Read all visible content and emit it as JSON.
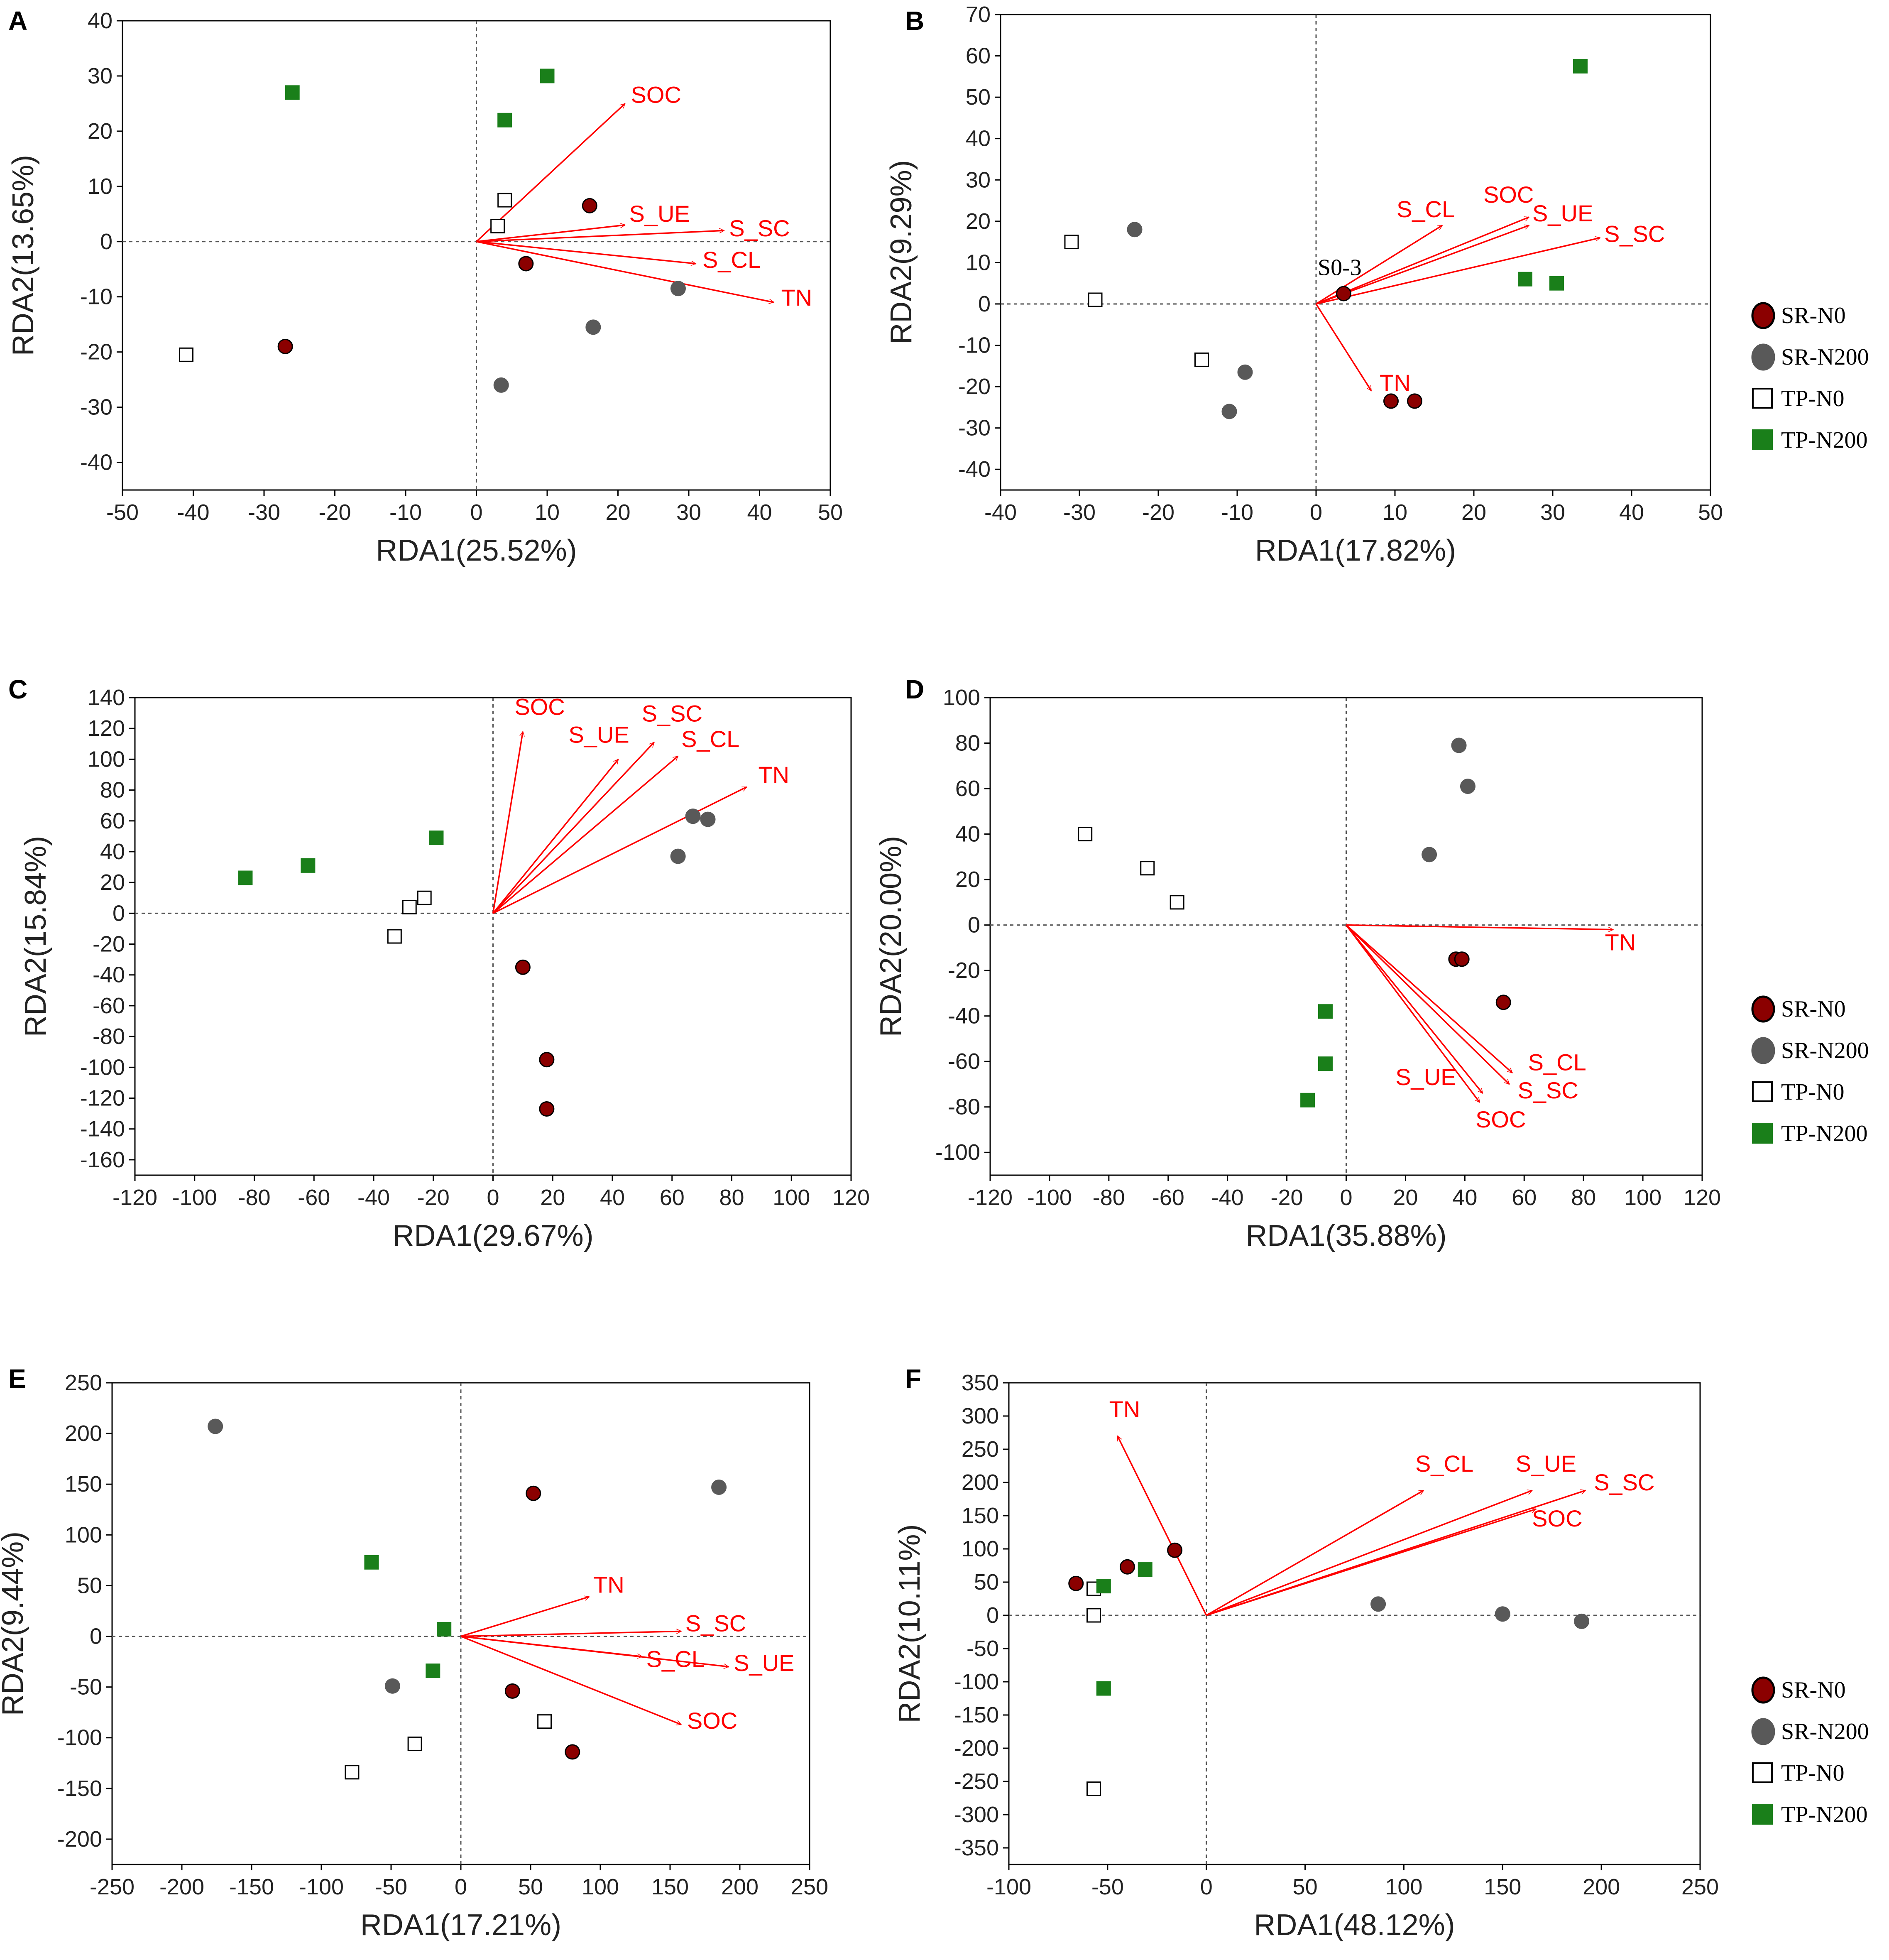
{
  "legend": {
    "entries": [
      {
        "label": "SR-N0",
        "marker": "circle",
        "fill": "#8b0000",
        "stroke": "#000000"
      },
      {
        "label": "SR-N200",
        "marker": "circle",
        "fill": "#595959",
        "stroke": "#595959"
      },
      {
        "label": "TP-N0",
        "marker": "square",
        "fill": "#ffffff",
        "stroke": "#000000"
      },
      {
        "label": "TP-N200",
        "marker": "square",
        "fill": "#1a7f1a",
        "stroke": "#1a7f1a"
      }
    ]
  },
  "colors": {
    "arrow": "#ff0000",
    "axis": "#000000",
    "refline": "#555555"
  },
  "chart_data": [
    {
      "panel": "A",
      "type": "scatter",
      "xlabel": "RDA1(25.52%)",
      "ylabel": "RDA2(13.65%)",
      "xlim": [
        -50,
        50
      ],
      "ylim": [
        -45,
        40
      ],
      "xticks": [
        -50,
        -40,
        -30,
        -20,
        -10,
        0,
        10,
        20,
        30,
        40,
        50
      ],
      "yticks": [
        -40,
        -30,
        -20,
        -10,
        0,
        10,
        20,
        30,
        40
      ],
      "vectors": [
        {
          "name": "SOC",
          "x": 21,
          "y": 25
        },
        {
          "name": "S_UE",
          "x": 21,
          "y": 3
        },
        {
          "name": "S_SC",
          "x": 35,
          "y": 2
        },
        {
          "name": "S_CL",
          "x": 31,
          "y": -4
        },
        {
          "name": "TN",
          "x": 42,
          "y": -11
        }
      ],
      "series": [
        {
          "name": "SR-N0",
          "points": [
            [
              16,
              6.5
            ],
            [
              7,
              -4
            ],
            [
              -27,
              -19
            ]
          ]
        },
        {
          "name": "SR-N200",
          "points": [
            [
              28.5,
              -8.5
            ],
            [
              16.5,
              -15.5
            ],
            [
              3.5,
              -26
            ]
          ]
        },
        {
          "name": "TP-N0",
          "points": [
            [
              4,
              7.5
            ],
            [
              3,
              2.8
            ],
            [
              -41,
              -20.5
            ]
          ]
        },
        {
          "name": "TP-N200",
          "points": [
            [
              -26,
              27
            ],
            [
              10,
              30
            ],
            [
              4,
              22
            ]
          ]
        }
      ],
      "annotations": []
    },
    {
      "panel": "B",
      "type": "scatter",
      "xlabel": "RDA1(17.82%)",
      "ylabel": "RDA2(9.29%)",
      "xlim": [
        -40,
        50
      ],
      "ylim": [
        -45,
        70
      ],
      "xticks": [
        -40,
        -30,
        -20,
        -10,
        0,
        10,
        20,
        30,
        40,
        50
      ],
      "yticks": [
        -40,
        -30,
        -20,
        -10,
        0,
        10,
        20,
        30,
        40,
        50,
        60,
        70
      ],
      "vectors": [
        {
          "name": "S_CL",
          "x": 16,
          "y": 19
        },
        {
          "name": "SOC",
          "x": 27,
          "y": 21
        },
        {
          "name": "S_UE",
          "x": 27,
          "y": 19
        },
        {
          "name": "S_SC",
          "x": 36,
          "y": 16
        },
        {
          "name": "TN",
          "x": 7,
          "y": -21
        }
      ],
      "series": [
        {
          "name": "SR-N0",
          "points": [
            [
              3.5,
              2.5
            ],
            [
              9.5,
              -23.5
            ],
            [
              12.5,
              -23.5
            ]
          ]
        },
        {
          "name": "SR-N200",
          "points": [
            [
              -23,
              18
            ],
            [
              -9,
              -16.5
            ],
            [
              -11,
              -26
            ]
          ]
        },
        {
          "name": "TP-N0",
          "points": [
            [
              -31,
              15
            ],
            [
              -28,
              1
            ],
            [
              -14.5,
              -13.5
            ]
          ]
        },
        {
          "name": "TP-N200",
          "points": [
            [
              33.5,
              57.5
            ],
            [
              26.5,
              6
            ],
            [
              30.5,
              5
            ]
          ]
        }
      ],
      "annotations": [
        {
          "text": "S0-3",
          "x": 0,
          "y": 7
        }
      ]
    },
    {
      "panel": "C",
      "type": "scatter",
      "xlabel": "RDA1(29.67%)",
      "ylabel": "RDA2(15.84%)",
      "xlim": [
        -120,
        120
      ],
      "ylim": [
        -170,
        140
      ],
      "xticks": [
        -120,
        -100,
        -80,
        -60,
        -40,
        -20,
        0,
        20,
        40,
        60,
        80,
        100,
        120
      ],
      "yticks": [
        -160,
        -140,
        -120,
        -100,
        -80,
        -60,
        -40,
        -20,
        0,
        20,
        40,
        60,
        80,
        100,
        120,
        140
      ],
      "vectors": [
        {
          "name": "SOC",
          "x": 10,
          "y": 118
        },
        {
          "name": "S_UE",
          "x": 42,
          "y": 100
        },
        {
          "name": "S_SC",
          "x": 54,
          "y": 111
        },
        {
          "name": "S_CL",
          "x": 62,
          "y": 102
        },
        {
          "name": "TN",
          "x": 85,
          "y": 82
        }
      ],
      "series": [
        {
          "name": "SR-N0",
          "points": [
            [
              10,
              -35
            ],
            [
              18,
              -95
            ],
            [
              18,
              -127
            ]
          ]
        },
        {
          "name": "SR-N200",
          "points": [
            [
              62,
              37
            ],
            [
              67,
              63
            ],
            [
              72,
              61
            ]
          ]
        },
        {
          "name": "TP-N0",
          "points": [
            [
              -33,
              -15
            ],
            [
              -28,
              4
            ],
            [
              -23,
              10
            ]
          ]
        },
        {
          "name": "TP-N200",
          "points": [
            [
              -83,
              23
            ],
            [
              -62,
              31
            ],
            [
              -19,
              49
            ]
          ]
        }
      ],
      "annotations": []
    },
    {
      "panel": "D",
      "type": "scatter",
      "xlabel": "RDA1(35.88%)",
      "ylabel": "RDA2(20.00%)",
      "xlim": [
        -120,
        120
      ],
      "ylim": [
        -110,
        100
      ],
      "xticks": [
        -120,
        -100,
        -80,
        -60,
        -40,
        -20,
        0,
        20,
        40,
        60,
        80,
        100,
        120
      ],
      "yticks": [
        -100,
        -80,
        -60,
        -40,
        -20,
        0,
        20,
        40,
        60,
        80,
        100
      ],
      "vectors": [
        {
          "name": "TN",
          "x": 90,
          "y": -2
        },
        {
          "name": "S_CL",
          "x": 56,
          "y": -65
        },
        {
          "name": "S_SC",
          "x": 55,
          "y": -70
        },
        {
          "name": "S_UE",
          "x": 46,
          "y": -74
        },
        {
          "name": "SOC",
          "x": 45,
          "y": -78
        }
      ],
      "series": [
        {
          "name": "SR-N0",
          "points": [
            [
              37,
              -15
            ],
            [
              39,
              -15
            ],
            [
              53,
              -34
            ]
          ]
        },
        {
          "name": "SR-N200",
          "points": [
            [
              38,
              79
            ],
            [
              41,
              61
            ],
            [
              28,
              31
            ]
          ]
        },
        {
          "name": "TP-N0",
          "points": [
            [
              -88,
              40
            ],
            [
              -67,
              25
            ],
            [
              -57,
              10
            ]
          ]
        },
        {
          "name": "TP-N200",
          "points": [
            [
              -7,
              -38
            ],
            [
              -7,
              -61
            ],
            [
              -13,
              -77
            ]
          ]
        }
      ],
      "annotations": []
    },
    {
      "panel": "E",
      "type": "scatter",
      "xlabel": "RDA1(17.21%)",
      "ylabel": "RDA2(9.44%)",
      "xlim": [
        -250,
        250
      ],
      "ylim": [
        -225,
        250
      ],
      "xticks": [
        -250,
        -200,
        -150,
        -100,
        -50,
        0,
        50,
        100,
        150,
        200,
        250
      ],
      "yticks": [
        -200,
        -150,
        -100,
        -50,
        0,
        50,
        100,
        150,
        200,
        250
      ],
      "vectors": [
        {
          "name": "TN",
          "x": 92,
          "y": 39
        },
        {
          "name": "S_SC",
          "x": 158,
          "y": 5
        },
        {
          "name": "S_CL",
          "x": 130,
          "y": -20
        },
        {
          "name": "S_UE",
          "x": 192,
          "y": -30
        },
        {
          "name": "SOC",
          "x": 158,
          "y": -87
        }
      ],
      "series": [
        {
          "name": "SR-N0",
          "points": [
            [
              52,
              141
            ],
            [
              37,
              -54
            ],
            [
              80,
              -114
            ]
          ]
        },
        {
          "name": "SR-N200",
          "points": [
            [
              -176,
              207
            ],
            [
              185,
              147
            ],
            [
              -49,
              -49
            ]
          ]
        },
        {
          "name": "TP-N0",
          "points": [
            [
              -33,
              -106
            ],
            [
              -78,
              -134
            ],
            [
              60,
              -84
            ]
          ]
        },
        {
          "name": "TP-N200",
          "points": [
            [
              -64,
              73
            ],
            [
              -12,
              7
            ],
            [
              -20,
              -34
            ]
          ]
        }
      ],
      "annotations": []
    },
    {
      "panel": "F",
      "type": "scatter",
      "xlabel": "RDA1(48.12%)",
      "ylabel": "RDA2(10.11%)",
      "xlim": [
        -100,
        250
      ],
      "ylim": [
        -375,
        350
      ],
      "xticks": [
        -100,
        -50,
        0,
        50,
        100,
        150,
        200,
        250
      ],
      "yticks": [
        -350,
        -300,
        -250,
        -200,
        -150,
        -100,
        -50,
        0,
        50,
        100,
        150,
        200,
        250,
        300,
        350
      ],
      "vectors": [
        {
          "name": "TN",
          "x": -45,
          "y": 270
        },
        {
          "name": "S_CL",
          "x": 110,
          "y": 188
        },
        {
          "name": "S_UE",
          "x": 165,
          "y": 188
        },
        {
          "name": "S_SC",
          "x": 192,
          "y": 188
        },
        {
          "name": "SOC",
          "x": 167,
          "y": 160
        }
      ],
      "series": [
        {
          "name": "SR-N0",
          "points": [
            [
              -66,
              48
            ],
            [
              -40,
              73
            ],
            [
              -16,
              98
            ]
          ]
        },
        {
          "name": "SR-N200",
          "points": [
            [
              87,
              17
            ],
            [
              150,
              2
            ],
            [
              190,
              -9
            ]
          ]
        },
        {
          "name": "TP-N0",
          "points": [
            [
              -57,
              40
            ],
            [
              -57,
              0
            ],
            [
              -57,
              -261
            ]
          ]
        },
        {
          "name": "TP-N200",
          "points": [
            [
              -52,
              44
            ],
            [
              -31,
              69
            ],
            [
              -52,
              -110
            ]
          ]
        }
      ],
      "annotations": []
    }
  ]
}
